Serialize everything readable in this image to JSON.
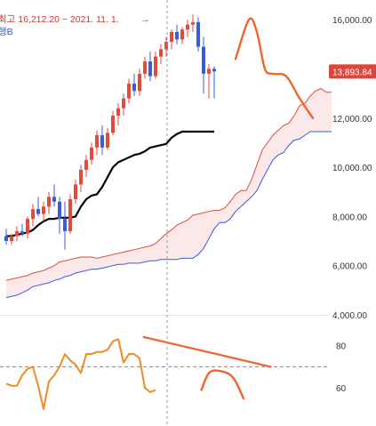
{
  "chart_data": [
    {
      "type": "candlestick",
      "title": "",
      "xlabel": "",
      "ylabel": "",
      "ylim": [
        4000,
        16800
      ],
      "y_ticks": [
        "16,000.00",
        "14,000.00",
        "12,000.00",
        "10,000.00",
        "8,000.00",
        "6,000.00",
        "4,000.00"
      ],
      "y_tick_values": [
        16000,
        14000,
        12000,
        10000,
        8000,
        6000,
        4000
      ],
      "grid": "none",
      "current_price": {
        "label": "13,893.84",
        "value": 13893.84,
        "color": "#e0453a"
      },
      "annotations": {
        "high_note": "최고 16,212.20 − 2021. 11. 1.",
        "high_arrow": "→",
        "high_color": "#d0392b",
        "band_label": "행B",
        "band_label_color": "#3b5bdb"
      },
      "colors": {
        "up": "#e24a3b",
        "down": "#3b5bdb",
        "conversion": "#000000",
        "span_a": "#e24a3b",
        "span_b": "#3b5bdb",
        "cloud": "#fbe9e9",
        "forecast": "#f0642e",
        "crosshair": "#999999"
      },
      "candles": [
        {
          "o": 7200,
          "h": 7500,
          "l": 6850,
          "c": 7000
        },
        {
          "o": 7000,
          "h": 7300,
          "l": 6850,
          "c": 7200
        },
        {
          "o": 7200,
          "h": 7600,
          "l": 7000,
          "c": 7400
        },
        {
          "o": 7400,
          "h": 7700,
          "l": 7200,
          "c": 7300
        },
        {
          "o": 7300,
          "h": 8000,
          "l": 7100,
          "c": 7900
        },
        {
          "o": 7900,
          "h": 8500,
          "l": 7600,
          "c": 8300
        },
        {
          "o": 8300,
          "h": 8800,
          "l": 8000,
          "c": 8100
        },
        {
          "o": 8100,
          "h": 8600,
          "l": 7800,
          "c": 8400
        },
        {
          "o": 8400,
          "h": 9000,
          "l": 8100,
          "c": 8800
        },
        {
          "o": 8800,
          "h": 9300,
          "l": 8400,
          "c": 8600
        },
        {
          "o": 8600,
          "h": 8800,
          "l": 7300,
          "c": 7900
        },
        {
          "o": 7900,
          "h": 8600,
          "l": 6650,
          "c": 7400
        },
        {
          "o": 7400,
          "h": 8900,
          "l": 7300,
          "c": 8700
        },
        {
          "o": 8700,
          "h": 9500,
          "l": 8500,
          "c": 9300
        },
        {
          "o": 9300,
          "h": 10100,
          "l": 9000,
          "c": 9900
        },
        {
          "o": 9900,
          "h": 10500,
          "l": 9600,
          "c": 10300
        },
        {
          "o": 10300,
          "h": 11000,
          "l": 10100,
          "c": 10800
        },
        {
          "o": 10800,
          "h": 11500,
          "l": 10500,
          "c": 11300
        },
        {
          "o": 11300,
          "h": 11700,
          "l": 10500,
          "c": 10800
        },
        {
          "o": 10800,
          "h": 11600,
          "l": 10700,
          "c": 11400
        },
        {
          "o": 11400,
          "h": 12300,
          "l": 11300,
          "c": 12100
        },
        {
          "o": 12100,
          "h": 12600,
          "l": 11700,
          "c": 12400
        },
        {
          "o": 12400,
          "h": 13000,
          "l": 12100,
          "c": 12800
        },
        {
          "o": 12800,
          "h": 13600,
          "l": 12600,
          "c": 13400
        },
        {
          "o": 13400,
          "h": 13800,
          "l": 12900,
          "c": 13100
        },
        {
          "o": 13100,
          "h": 14000,
          "l": 12900,
          "c": 13800
        },
        {
          "o": 13800,
          "h": 14500,
          "l": 13600,
          "c": 14300
        },
        {
          "o": 14300,
          "h": 14700,
          "l": 13500,
          "c": 13700
        },
        {
          "o": 13700,
          "h": 14700,
          "l": 13600,
          "c": 14500
        },
        {
          "o": 14500,
          "h": 15000,
          "l": 14200,
          "c": 14800
        },
        {
          "o": 14800,
          "h": 15300,
          "l": 14500,
          "c": 15100
        },
        {
          "o": 15100,
          "h": 15600,
          "l": 14800,
          "c": 15500
        },
        {
          "o": 15500,
          "h": 15800,
          "l": 15000,
          "c": 15200
        },
        {
          "o": 15200,
          "h": 15700,
          "l": 15000,
          "c": 15600
        },
        {
          "o": 15600,
          "h": 16000,
          "l": 15300,
          "c": 15800
        },
        {
          "o": 15800,
          "h": 16212.2,
          "l": 15500,
          "c": 15900
        },
        {
          "o": 15900,
          "h": 16100,
          "l": 14700,
          "c": 14900
        },
        {
          "o": 14900,
          "h": 15300,
          "l": 13000,
          "c": 13800
        },
        {
          "o": 13800,
          "h": 14200,
          "l": 12800,
          "c": 14000
        },
        {
          "o": 14000,
          "h": 14100,
          "l": 12800,
          "c": 13893.84
        }
      ],
      "conversion_line": [
        7200,
        7200,
        7250,
        7300,
        7350,
        7450,
        7650,
        7800,
        7900,
        7900,
        7950,
        7950,
        7950,
        8000,
        8400,
        8700,
        8850,
        8900,
        9200,
        9600,
        10000,
        10200,
        10300,
        10400,
        10500,
        10550,
        10650,
        10800,
        10850,
        10900,
        10950,
        11200,
        11350,
        11450,
        11450,
        11450,
        11450,
        11450,
        11450,
        11450
      ],
      "span_a": [
        5400,
        5450,
        5500,
        5550,
        5600,
        5700,
        5750,
        5800,
        5900,
        6000,
        6150,
        6200,
        6250,
        6300,
        6350,
        6350,
        6350,
        6300,
        6350,
        6400,
        6450,
        6500,
        6550,
        6600,
        6650,
        6700,
        6750,
        6800,
        6900,
        7100,
        7300,
        7450,
        7650,
        7750,
        7850,
        8050,
        8100,
        8150,
        8200,
        8250,
        8250,
        8350,
        8600,
        8900,
        9050,
        9050,
        9500,
        10100,
        10700,
        11000,
        11300,
        11500,
        11700,
        11800,
        12100,
        12500,
        12600,
        12900,
        13100,
        13200,
        13050,
        13050
      ],
      "span_b": [
        4700,
        4750,
        4800,
        4900,
        5000,
        5150,
        5200,
        5250,
        5300,
        5400,
        5450,
        5550,
        5600,
        5700,
        5750,
        5800,
        5850,
        5850,
        5900,
        5950,
        6000,
        6050,
        6050,
        6100,
        6100,
        6100,
        6150,
        6200,
        6200,
        6250,
        6250,
        6250,
        6250,
        6300,
        6300,
        6300,
        6450,
        6700,
        7100,
        7500,
        7750,
        7750,
        7900,
        8200,
        8400,
        8600,
        8800,
        9050,
        9500,
        9900,
        10300,
        10500,
        10600,
        10900,
        11100,
        11150,
        11300,
        11450,
        11450,
        11450,
        11450,
        11450
      ],
      "forecast_path": [
        [
          43,
          14400
        ],
        [
          45.5,
          16000
        ],
        [
          47,
          15500
        ],
        [
          48.5,
          14000
        ],
        [
          50,
          13800
        ],
        [
          52.5,
          13700
        ],
        [
          55,
          12800
        ],
        [
          57.5,
          12000
        ]
      ]
    },
    {
      "type": "line",
      "title": "",
      "xlabel": "",
      "ylabel": "",
      "ylim": [
        42,
        92
      ],
      "y_ticks": [
        "80",
        "60"
      ],
      "y_tick_values": [
        80,
        60
      ],
      "reference_line": 70,
      "colors": {
        "line": "#f28a23",
        "trend": "#f0642e",
        "forecast": "#f0642e",
        "reference": "#888888"
      },
      "values": [
        62,
        61,
        61,
        66,
        69,
        70,
        61,
        50,
        63,
        66,
        70,
        76,
        73,
        71,
        67,
        76,
        76,
        77,
        77,
        78,
        82,
        83,
        72,
        76,
        76,
        74,
        60,
        58,
        59
      ],
      "trend_line": [
        [
          25.8,
          84
        ],
        [
          49.6,
          70
        ]
      ],
      "forecast_path": [
        [
          36.6,
          59
        ],
        [
          38,
          67
        ],
        [
          40,
          68
        ],
        [
          42.5,
          65
        ],
        [
          44.5,
          55
        ]
      ]
    }
  ]
}
